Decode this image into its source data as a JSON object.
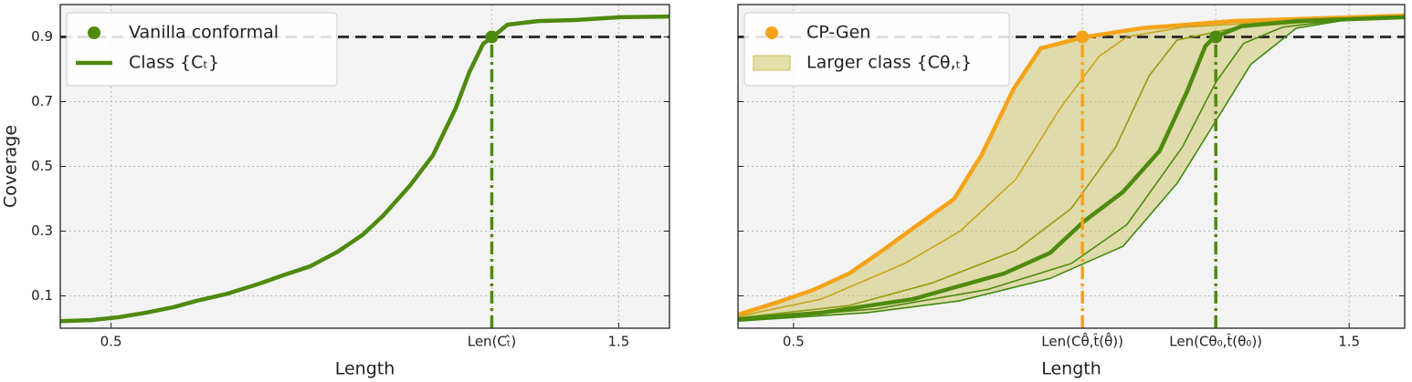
{
  "chart_data": [
    {
      "type": "line",
      "xlabel": "Length",
      "ylabel": "Coverage",
      "xlim": [
        0.4,
        1.6
      ],
      "ylim": [
        0,
        1
      ],
      "xticks": [
        0.5,
        {
          "value": 1.25,
          "label": "Len(Cₜ̂)"
        },
        1.5
      ],
      "yticks": [
        0.1,
        0.3,
        0.5,
        0.7,
        0.9
      ],
      "show_ytick_labels": true,
      "grid": true,
      "hline": 0.9,
      "legend": "upper left",
      "series": [
        {
          "name": "Class {Cₜ}",
          "color": "#4e8a0e",
          "bold": true,
          "x": [
            0.4,
            0.461,
            0.515,
            0.569,
            0.623,
            0.667,
            0.73,
            0.793,
            0.838,
            0.892,
            0.946,
            0.996,
            1.036,
            1.089,
            1.134,
            1.179,
            1.206,
            1.233,
            1.251,
            1.281,
            1.341,
            1.413,
            1.502,
            1.6
          ],
          "values": [
            0.022,
            0.025,
            0.034,
            0.048,
            0.065,
            0.084,
            0.107,
            0.138,
            0.163,
            0.191,
            0.236,
            0.289,
            0.348,
            0.441,
            0.534,
            0.68,
            0.792,
            0.879,
            0.899,
            0.938,
            0.949,
            0.952,
            0.961,
            0.963
          ]
        }
      ],
      "points": [
        {
          "name": "Vanilla conformal",
          "color": "#4e8a0e",
          "x": 1.25,
          "y": 0.9
        }
      ]
    },
    {
      "type": "line",
      "xlabel": "Length",
      "xlim": [
        0.4,
        1.6
      ],
      "ylim": [
        0,
        1
      ],
      "xticks": [
        0.5,
        {
          "value": 1.02,
          "label": "Len(Cθ̂,t̂(θ̂))"
        },
        {
          "value": 1.26,
          "label": "Len(Cθ₀,t̂(θ₀))"
        },
        1.5
      ],
      "yticks": [
        0.1,
        0.3,
        0.5,
        0.7,
        0.9
      ],
      "show_ytick_labels": false,
      "grid": true,
      "hline": 0.9,
      "legend": "upper left",
      "series": [
        {
          "color": "#f5a31a",
          "bold": true,
          "x": [
            0.4,
            0.469,
            0.535,
            0.6,
            0.666,
            0.715,
            0.789,
            0.838,
            0.896,
            0.945,
            1.022,
            1.126,
            1.29,
            1.6
          ],
          "values": [
            0.042,
            0.079,
            0.118,
            0.169,
            0.247,
            0.309,
            0.399,
            0.534,
            0.739,
            0.865,
            0.899,
            0.927,
            0.949,
            0.966
          ]
        },
        {
          "color": "#c9a41c",
          "bold": false,
          "x": [
            0.4,
            0.55,
            0.7,
            0.8,
            0.9,
            0.98,
            1.05,
            1.1,
            1.2,
            1.4,
            1.6
          ],
          "values": [
            0.036,
            0.09,
            0.2,
            0.3,
            0.46,
            0.68,
            0.84,
            0.9,
            0.93,
            0.95,
            0.964
          ]
        },
        {
          "color": "#8e9e12",
          "bold": false,
          "x": [
            0.4,
            0.6,
            0.75,
            0.9,
            1.0,
            1.08,
            1.14,
            1.19,
            1.3,
            1.5,
            1.6
          ],
          "values": [
            0.032,
            0.07,
            0.14,
            0.24,
            0.37,
            0.56,
            0.78,
            0.89,
            0.93,
            0.955,
            0.962
          ]
        },
        {
          "color": "#4e8a0e",
          "bold": true,
          "x": [
            0.4,
            0.551,
            0.715,
            0.879,
            0.962,
            1.022,
            1.093,
            1.159,
            1.208,
            1.241,
            1.257,
            1.306,
            1.405,
            1.6
          ],
          "values": [
            0.028,
            0.048,
            0.09,
            0.169,
            0.233,
            0.329,
            0.421,
            0.548,
            0.73,
            0.871,
            0.899,
            0.933,
            0.949,
            0.961
          ]
        },
        {
          "color": "#4e8a0e",
          "bold": false,
          "x": [
            0.4,
            0.65,
            0.85,
            1.0,
            1.1,
            1.2,
            1.26,
            1.31,
            1.38,
            1.5,
            1.6
          ],
          "values": [
            0.025,
            0.06,
            0.12,
            0.2,
            0.32,
            0.56,
            0.76,
            0.88,
            0.93,
            0.955,
            0.962
          ]
        },
        {
          "color": "#3f8a10",
          "bold": false,
          "x": [
            0.4,
            0.633,
            0.797,
            0.962,
            1.093,
            1.191,
            1.257,
            1.323,
            1.405,
            1.503,
            1.6
          ],
          "values": [
            0.022,
            0.048,
            0.084,
            0.154,
            0.253,
            0.449,
            0.632,
            0.815,
            0.927,
            0.955,
            0.963
          ]
        }
      ],
      "fill": {
        "name": "Larger class {Cθ,ₜ}",
        "color": "#c8bf55"
      },
      "points": [
        {
          "name": "CP-Gen",
          "color": "#f5a31a",
          "x": 1.02,
          "y": 0.9
        },
        {
          "color": "#4e8a0e",
          "x": 1.26,
          "y": 0.9
        }
      ]
    }
  ]
}
